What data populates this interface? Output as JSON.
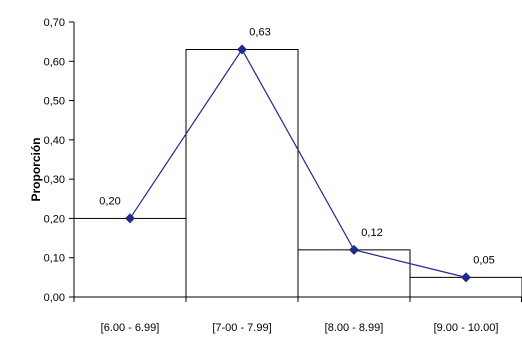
{
  "chart_data": {
    "type": "bar",
    "categories": [
      "[6.00 - 6.99]",
      "[7-00 - 7.99]",
      "[8.00 - 8.99]",
      "[9.00 - 10.00]"
    ],
    "values": [
      0.2,
      0.63,
      0.12,
      0.05
    ],
    "data_labels": [
      "0,20",
      "0,63",
      "0,12",
      "0,05"
    ],
    "line_series": {
      "values": [
        0.2,
        0.63,
        0.12,
        0.05
      ],
      "color": "#1f2a8a"
    },
    "title": "",
    "xlabel": "",
    "ylabel": "Proporción",
    "ylim": [
      0,
      0.7
    ],
    "yticks": [
      0.0,
      0.1,
      0.2,
      0.3,
      0.4,
      0.5,
      0.6,
      0.7
    ],
    "ytick_labels": [
      "0,00",
      "0,10",
      "0,20",
      "0,30",
      "0,40",
      "0,50",
      "0,60",
      "0,70"
    ],
    "grid": false,
    "bar_fill": "#ffffff",
    "bar_stroke": "#000000"
  }
}
